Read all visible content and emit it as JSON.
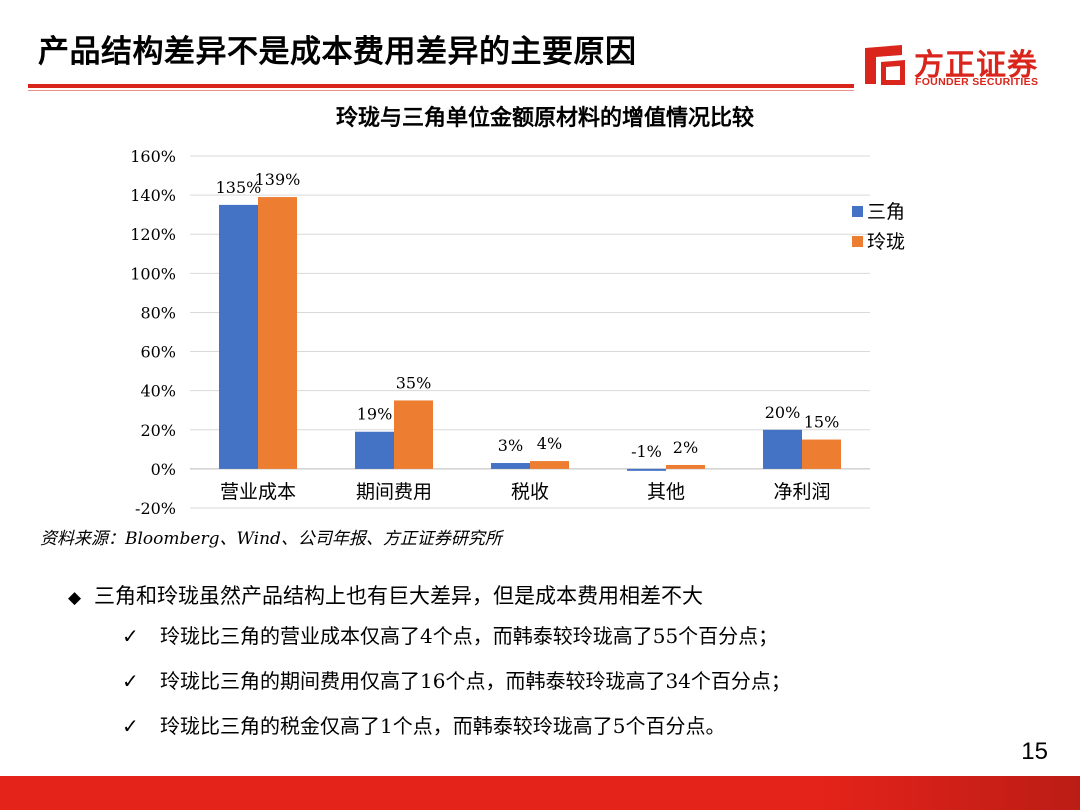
{
  "slide": {
    "title": "产品结构差异不是成本费用差异的主要原因",
    "page_number": "15"
  },
  "logo": {
    "name_cn": "方正证券",
    "name_en": "FOUNDER SECURITIES"
  },
  "colors": {
    "accent": "#d9251c",
    "series_1": "#4472c4",
    "series_2": "#ed7d31"
  },
  "chart_data": {
    "type": "bar",
    "title": "玲珑与三角单位金额原材料的增值情况比较",
    "categories": [
      "营业成本",
      "期间费用",
      "税收",
      "其他",
      "净利润"
    ],
    "series": [
      {
        "name": "三角",
        "values": [
          135,
          19,
          3,
          -1,
          20
        ],
        "labels": [
          "135%",
          "19%",
          "3%",
          "-1%",
          "20%"
        ]
      },
      {
        "name": "玲珑",
        "values": [
          139,
          35,
          4,
          2,
          15
        ],
        "labels": [
          "139%",
          "35%",
          "4%",
          "2%",
          "15%"
        ]
      }
    ],
    "ylim": [
      -20,
      160
    ],
    "yticks": [
      "160%",
      "140%",
      "120%",
      "100%",
      "80%",
      "60%",
      "40%",
      "20%",
      "0%",
      "-20%"
    ],
    "ytick_values": [
      160,
      140,
      120,
      100,
      80,
      60,
      40,
      20,
      0,
      -20
    ],
    "grid": true,
    "legend_position": "right"
  },
  "source_note": "资料来源：Bloomberg、Wind、公司年报、方正证券研究所",
  "bullets": {
    "main": "三角和玲珑虽然产品结构上也有巨大差异，但是成本费用相差不大",
    "subs": [
      "玲珑比三角的营业成本仅高了4个点，而韩泰较玲珑高了55个百分点；",
      "玲珑比三角的期间费用仅高了16个点，而韩泰较玲珑高了34个百分点；",
      "玲珑比三角的税金仅高了1个点，而韩泰较玲珑高了5个百分点。"
    ]
  }
}
